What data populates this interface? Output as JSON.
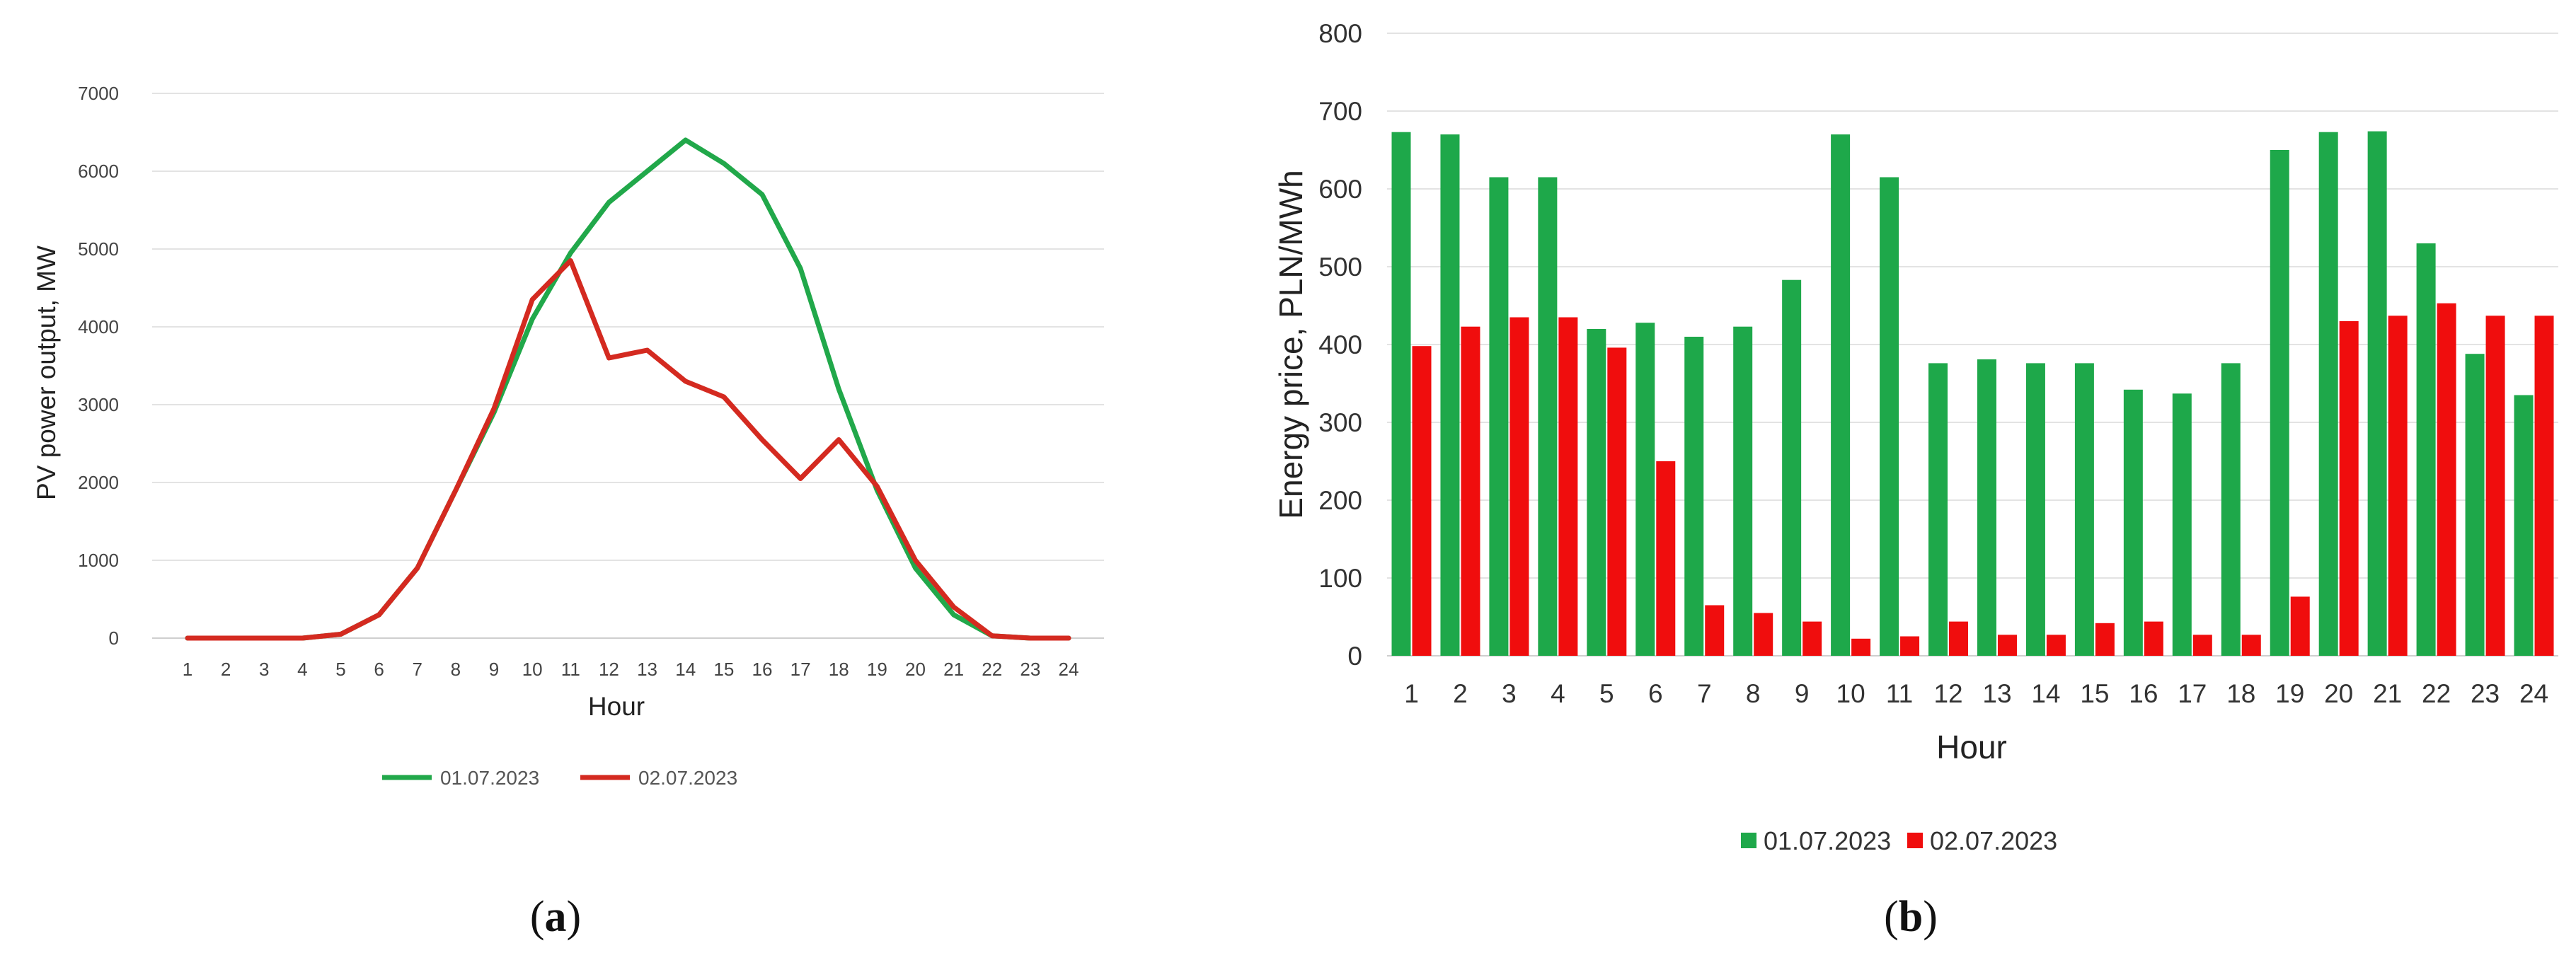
{
  "chart_data": [
    {
      "type": "line",
      "caption_open": "(",
      "caption_letter": "a",
      "caption_close": ")",
      "xlabel": "Hour",
      "ylabel": "PV power output, MW",
      "ylim": [
        0,
        7000
      ],
      "yticks": [
        0,
        1000,
        2000,
        3000,
        4000,
        5000,
        6000,
        7000
      ],
      "x": [
        1,
        2,
        3,
        4,
        5,
        6,
        7,
        8,
        9,
        10,
        11,
        12,
        13,
        14,
        15,
        16,
        17,
        18,
        19,
        20,
        21,
        22,
        23,
        24
      ],
      "grid": true,
      "legend_position": "bottom",
      "series": [
        {
          "name": "01.07.2023",
          "color": "#21a84a",
          "values": [
            0,
            0,
            0,
            0,
            50,
            300,
            900,
            1900,
            2900,
            4100,
            4950,
            5600,
            6000,
            6400,
            6100,
            5700,
            4750,
            3200,
            1900,
            900,
            300,
            30,
            0,
            0
          ]
        },
        {
          "name": "02.07.2023",
          "color": "#d42a20",
          "values": [
            0,
            0,
            0,
            0,
            50,
            300,
            900,
            1900,
            2950,
            4350,
            4850,
            3600,
            3700,
            3300,
            3100,
            2550,
            2050,
            2550,
            1950,
            1000,
            400,
            30,
            0,
            0
          ]
        }
      ]
    },
    {
      "type": "bar",
      "caption_open": "(",
      "caption_letter": "b",
      "caption_close": ")",
      "xlabel": "Hour",
      "ylabel": "Energy price, PLN/MWh",
      "ylim": [
        0,
        800
      ],
      "yticks": [
        0,
        100,
        200,
        300,
        400,
        500,
        600,
        700,
        800
      ],
      "categories": [
        "1",
        "2",
        "3",
        "4",
        "5",
        "6",
        "7",
        "8",
        "9",
        "10",
        "11",
        "12",
        "13",
        "14",
        "15",
        "16",
        "17",
        "18",
        "19",
        "20",
        "21",
        "22",
        "23",
        "24"
      ],
      "grid": true,
      "legend_position": "bottom",
      "series": [
        {
          "name": "01.07.2023",
          "color": "#1ea84a",
          "values": [
            673,
            670,
            615,
            615,
            420,
            428,
            410,
            423,
            483,
            670,
            615,
            376,
            381,
            376,
            376,
            342,
            337,
            376,
            650,
            673,
            674,
            530,
            388,
            335
          ]
        },
        {
          "name": "02.07.2023",
          "color": "#f00d0d",
          "values": [
            398,
            423,
            435,
            435,
            396,
            250,
            65,
            55,
            44,
            22,
            25,
            44,
            27,
            27,
            42,
            44,
            27,
            27,
            76,
            430,
            437,
            453,
            437,
            437
          ]
        }
      ]
    }
  ]
}
